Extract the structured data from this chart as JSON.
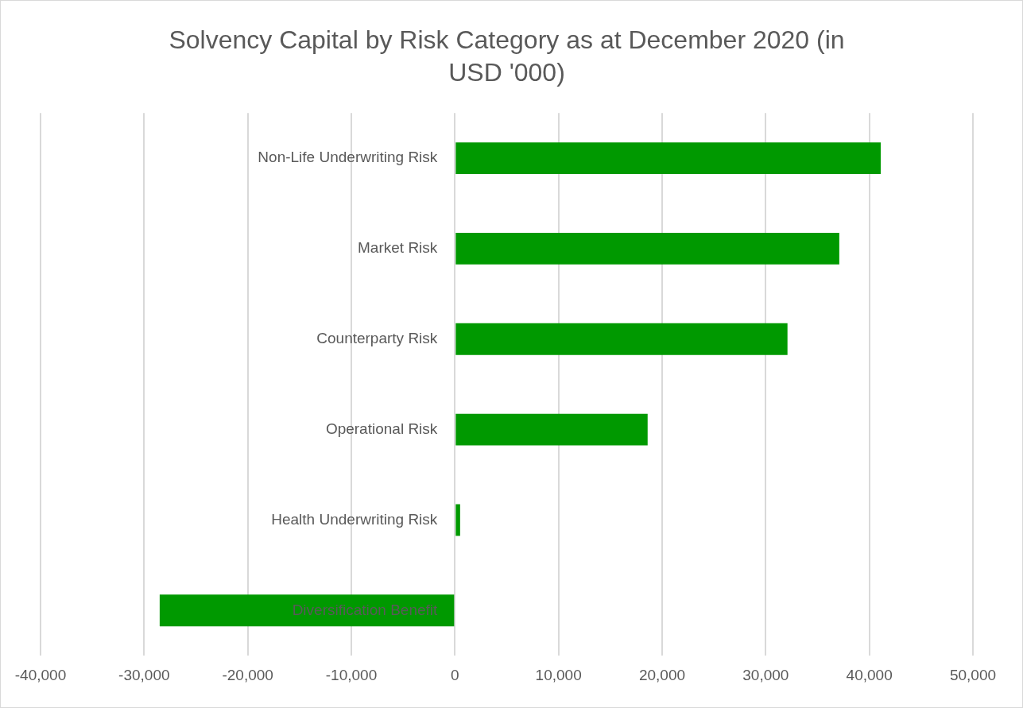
{
  "chart_data": {
    "type": "bar",
    "orientation": "horizontal",
    "title": "Solvency Capital by Risk Category as at December 2020 (in USD '000)",
    "categories": [
      "Non-Life Underwriting Risk",
      "Market Risk",
      "Counterparty Risk",
      "Operational Risk",
      "Health Underwriting Risk",
      "Diversification Benefit"
    ],
    "values": [
      41100,
      37100,
      32100,
      18600,
      500,
      -28500
    ],
    "color": "#009900",
    "xlim": [
      -40000,
      50000
    ],
    "xticks": [
      {
        "value": -40000,
        "label": "-40,000"
      },
      {
        "value": -30000,
        "label": "-30,000"
      },
      {
        "value": -20000,
        "label": "-20,000"
      },
      {
        "value": -10000,
        "label": "-10,000"
      },
      0,
      {
        "value": 10000,
        "label": "10,000"
      },
      {
        "value": 20000,
        "label": "20,000"
      },
      {
        "value": 30000,
        "label": "30,000"
      },
      {
        "value": 40000,
        "label": "40,000"
      },
      {
        "value": 50000,
        "label": "50,000"
      }
    ],
    "grid": "x",
    "legend": false
  }
}
